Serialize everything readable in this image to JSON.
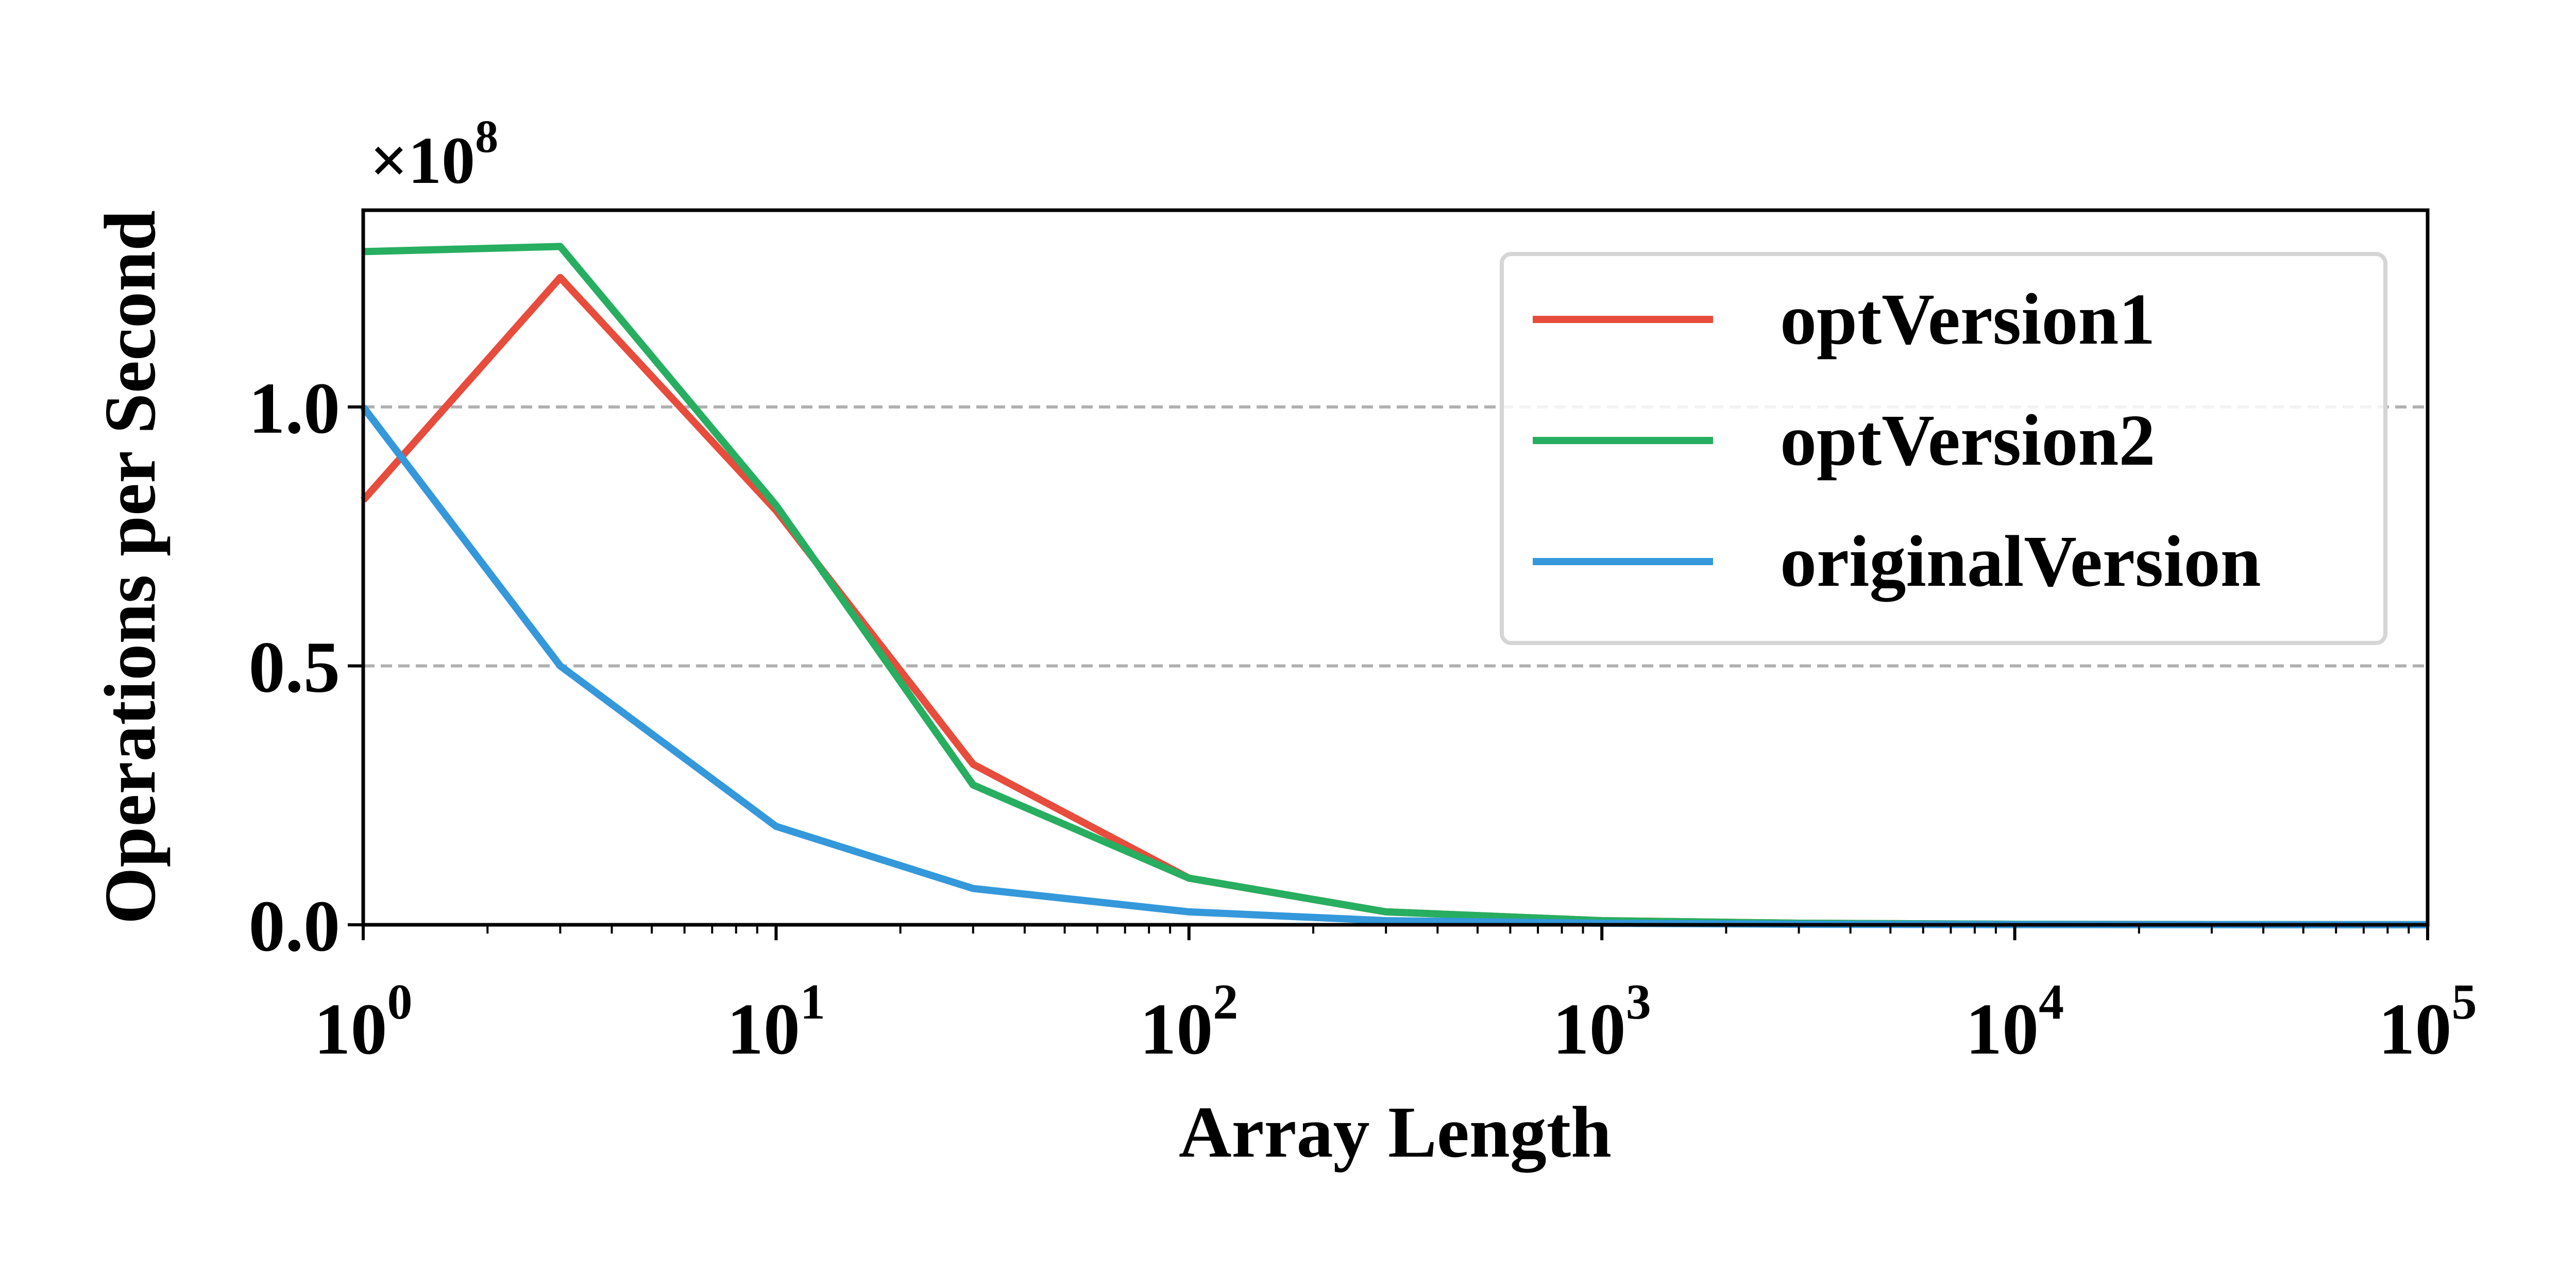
{
  "chart_data": {
    "type": "line",
    "xlabel": "Array Length",
    "ylabel": "Operations per Second",
    "x_scale": "log",
    "xlim": [
      1,
      100000
    ],
    "ylim": [
      0,
      1.38
    ],
    "y_multiplier_label": {
      "base": "×10",
      "exp": "8"
    },
    "x_ticks": [
      {
        "value": 1,
        "base": "10",
        "exp": "0"
      },
      {
        "value": 10,
        "base": "10",
        "exp": "1"
      },
      {
        "value": 100,
        "base": "10",
        "exp": "2"
      },
      {
        "value": 1000,
        "base": "10",
        "exp": "3"
      },
      {
        "value": 10000,
        "base": "10",
        "exp": "4"
      },
      {
        "value": 100000,
        "base": "10",
        "exp": "5"
      }
    ],
    "y_ticks": [
      {
        "value": 0.0,
        "label": "0.0"
      },
      {
        "value": 0.5,
        "label": "0.5"
      },
      {
        "value": 1.0,
        "label": "1.0"
      }
    ],
    "grid": {
      "axis": "y",
      "style": "dashed",
      "color": "#b0b0b0"
    },
    "legend": {
      "position": "top-right"
    },
    "x": [
      1,
      3,
      10,
      30,
      100,
      300,
      1000,
      3000,
      10000,
      30000,
      100000
    ],
    "series": [
      {
        "name": "optVersion1",
        "color": "#e74c3c",
        "values": [
          0.82,
          1.25,
          0.8,
          0.31,
          0.09,
          0.025,
          0.008,
          0.003,
          0.001,
          0.0005,
          0.0002
        ]
      },
      {
        "name": "optVersion2",
        "color": "#27ae60",
        "values": [
          1.3,
          1.31,
          0.81,
          0.27,
          0.09,
          0.025,
          0.008,
          0.003,
          0.001,
          0.0005,
          0.0002
        ]
      },
      {
        "name": "originalVersion",
        "color": "#3498db",
        "values": [
          1.0,
          0.5,
          0.19,
          0.07,
          0.025,
          0.008,
          0.003,
          0.001,
          0.0004,
          0.0002,
          0.0001
        ]
      }
    ]
  }
}
